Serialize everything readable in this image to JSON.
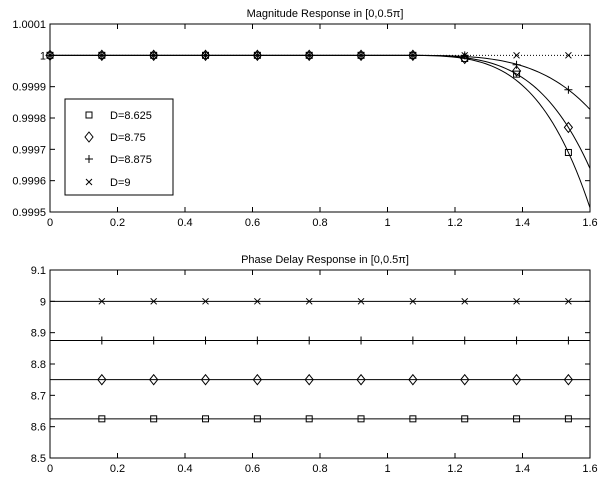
{
  "chart_data": [
    {
      "type": "line",
      "title": "Magnitude Response in [0,0.5π]",
      "xlabel": "",
      "ylabel": "",
      "xlim": [
        0,
        1.6
      ],
      "ylim": [
        0.9995,
        1.0001
      ],
      "x_ticks": [
        "0",
        "0.2",
        "0.4",
        "0.6",
        "0.8",
        "1",
        "1.2",
        "1.4",
        "1.6"
      ],
      "y_ticks": [
        "0.9995",
        "0.9996",
        "0.9997",
        "0.9998",
        "0.9999",
        "1",
        "1.0001"
      ],
      "grid": false,
      "legend_position": "left",
      "x": [
        0,
        0.1536,
        0.3072,
        0.4608,
        0.6144,
        0.768,
        0.9216,
        1.0752,
        1.2288,
        1.3824,
        1.536
      ],
      "series": [
        {
          "name": "D=8.625",
          "marker": "square",
          "values": [
            1,
            1,
            1,
            1,
            1,
            1,
            1,
            1,
            0.99999,
            0.99994,
            0.99969
          ]
        },
        {
          "name": "D=8.75",
          "marker": "diamond",
          "values": [
            1,
            1,
            1,
            1,
            1,
            1,
            1,
            1,
            0.99999,
            0.99995,
            0.99977
          ]
        },
        {
          "name": "D=8.875",
          "marker": "plus",
          "values": [
            1,
            1,
            1,
            1,
            1,
            1,
            1,
            1,
            1,
            0.99997,
            0.99989
          ]
        },
        {
          "name": "D=9",
          "marker": "x",
          "values": [
            1,
            1,
            1,
            1,
            1,
            1,
            1,
            1,
            1,
            1,
            1
          ]
        }
      ]
    },
    {
      "type": "line",
      "title": "Phase Delay Response in [0,0.5π]",
      "xlabel": "",
      "ylabel": "",
      "xlim": [
        0,
        1.6
      ],
      "ylim": [
        8.5,
        9.1
      ],
      "x_ticks": [
        "0",
        "0.2",
        "0.4",
        "0.6",
        "0.8",
        "1",
        "1.2",
        "1.4",
        "1.6"
      ],
      "y_ticks": [
        "8.5",
        "8.6",
        "8.7",
        "8.8",
        "8.9",
        "9",
        "9.1"
      ],
      "grid": false,
      "x": [
        0.1536,
        0.3072,
        0.4608,
        0.6144,
        0.768,
        0.9216,
        1.0752,
        1.2288,
        1.3824,
        1.536
      ],
      "series": [
        {
          "name": "D=8.625",
          "marker": "square",
          "values": [
            8.625,
            8.625,
            8.625,
            8.625,
            8.625,
            8.625,
            8.625,
            8.625,
            8.625,
            8.625
          ]
        },
        {
          "name": "D=8.75",
          "marker": "diamond",
          "values": [
            8.75,
            8.75,
            8.75,
            8.75,
            8.75,
            8.75,
            8.75,
            8.75,
            8.75,
            8.75
          ]
        },
        {
          "name": "D=8.875",
          "marker": "plus",
          "values": [
            8.875,
            8.875,
            8.875,
            8.875,
            8.875,
            8.875,
            8.875,
            8.875,
            8.875,
            8.875
          ]
        },
        {
          "name": "D=9",
          "marker": "x",
          "values": [
            9,
            9,
            9,
            9,
            9,
            9,
            9,
            9,
            9,
            9
          ]
        }
      ]
    }
  ]
}
